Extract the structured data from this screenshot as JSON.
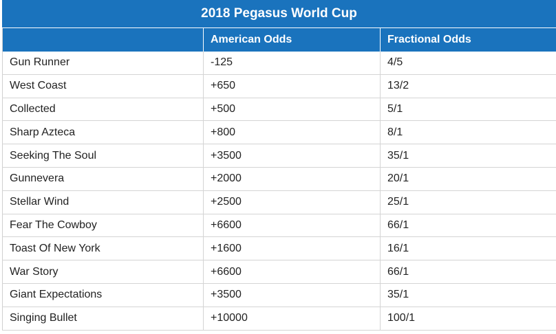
{
  "table": {
    "title": "2018 Pegasus World Cup",
    "headers": [
      "",
      "American Odds",
      "Fractional Odds"
    ],
    "rows": [
      [
        "Gun Runner",
        "-125",
        "4/5"
      ],
      [
        "West Coast",
        "+650",
        "13/2"
      ],
      [
        "Collected",
        "+500",
        "5/1"
      ],
      [
        "Sharp Azteca",
        "+800",
        "8/1"
      ],
      [
        "Seeking The Soul",
        "+3500",
        "35/1"
      ],
      [
        "Gunnevera",
        "+2000",
        "20/1"
      ],
      [
        "Stellar Wind",
        "+2500",
        "25/1"
      ],
      [
        "Fear The Cowboy",
        "+6600",
        "66/1"
      ],
      [
        "Toast Of New York",
        "+1600",
        "16/1"
      ],
      [
        "War Story",
        "+6600",
        "66/1"
      ],
      [
        "Giant Expectations",
        "+3500",
        "35/1"
      ],
      [
        "Singing Bullet",
        "+10000",
        "100/1"
      ]
    ]
  },
  "colors": {
    "header_bg": "#1a73bd",
    "header_text": "#ffffff",
    "row_border": "#d4d4d4",
    "cell_text": "#222222"
  }
}
